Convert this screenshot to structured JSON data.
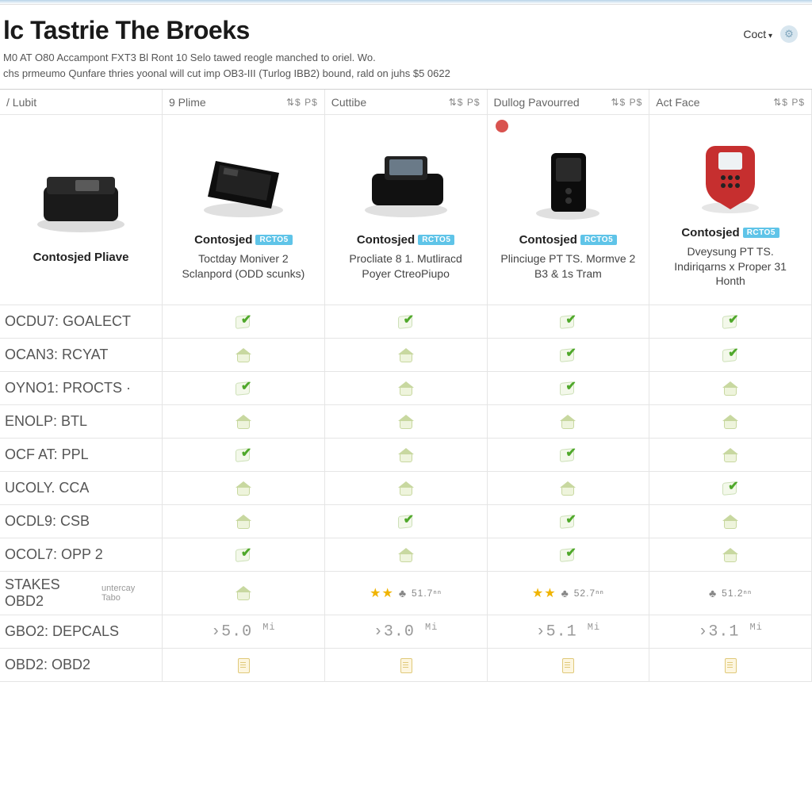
{
  "header": {
    "title": "lc Tastrie The Broeks",
    "subtitle1": "M0 AT O80 Accampont FXT3 Bl Ront 10 Selo tawed reogle manched to oriel. Wo.",
    "subtitle2": "chs prmeumo Qunfare thries yoonal will cut imp OB3-III (Turlog IBB2) bound, rald on juhs $5 0622",
    "cost_label": "Coct",
    "gear_icon": "⚙"
  },
  "columns": [
    {
      "label": "/ Lubit",
      "sort": ""
    },
    {
      "label": "9 Plime",
      "sort": "⇅$ P$"
    },
    {
      "label": "Cuttibe",
      "sort": "⇅$ P$"
    },
    {
      "label": "Dullog Pavourred",
      "sort": "⇅$ P$"
    },
    {
      "label": "Act Face",
      "sort": "⇅$ P$"
    }
  ],
  "products": [
    {
      "title_bold": "Contosjed Pliave",
      "badge": "",
      "desc": "",
      "device_type": "flat-black",
      "alert": false
    },
    {
      "title_bold": "Contosjed",
      "badge": "RCTO5",
      "desc": "Toctday Moniver 2 Sclanpord (ODD scunks)",
      "device_type": "angled-black",
      "alert": false
    },
    {
      "title_bold": "Contosjed",
      "badge": "RCTO5",
      "desc": "Procliate 8 1. Mutliracd Poyer CtreoPiupo",
      "device_type": "screen-black",
      "alert": false
    },
    {
      "title_bold": "Contosjed",
      "badge": "RCTO5",
      "desc": "Plinciuge PT TS. Mormve 2 B3 & 1s Tram",
      "device_type": "upright-black",
      "alert": true
    },
    {
      "title_bold": "Contosjed",
      "badge": "RCTO5",
      "desc": "Dveysung PT TS. Indiriqarns x Proper 31 Honth",
      "device_type": "handheld-red",
      "alert": false
    }
  ],
  "feature_rows": [
    {
      "label": "OCDU7: GOALECT",
      "sub": "",
      "cells": [
        "check",
        "check",
        "check",
        "check"
      ]
    },
    {
      "label": "OCAN3: RCYAT",
      "sub": "",
      "cells": [
        "house",
        "house",
        "check",
        "check"
      ]
    },
    {
      "label": "OYNO1: PROCTS ·",
      "sub": "",
      "cells": [
        "check",
        "house",
        "check",
        "house"
      ]
    },
    {
      "label": "ENOLP: BTL",
      "sub": "",
      "cells": [
        "house",
        "house",
        "house",
        "house"
      ]
    },
    {
      "label": "OCF AT: PPL",
      "sub": "",
      "cells": [
        "check",
        "house",
        "check",
        "house"
      ]
    },
    {
      "label": "UCOLY. CCA",
      "sub": "",
      "cells": [
        "house",
        "house",
        "house",
        "check"
      ]
    },
    {
      "label": "OCDL9: CSB",
      "sub": "",
      "cells": [
        "house",
        "check",
        "check",
        "house"
      ]
    },
    {
      "label": "OCOL7: OPP 2",
      "sub": "",
      "cells": [
        "check",
        "house",
        "check",
        "house"
      ]
    }
  ],
  "rating_row": {
    "label": "STAKES OBD2",
    "sub": "untercay Tabo",
    "cells": [
      {
        "type": "house"
      },
      {
        "type": "stars",
        "stars": "★★",
        "bell": "♣",
        "rev": "51.7ⁿⁿ"
      },
      {
        "type": "stars",
        "stars": "★★",
        "bell": "♣",
        "rev": "52.7ⁿⁿ"
      },
      {
        "type": "stars-nobell",
        "stars": "",
        "bell": "♣",
        "rev": "51.2ⁿⁿ"
      }
    ]
  },
  "stat_rows": [
    {
      "label": "GBO2: DEPCALS",
      "cells": [
        "›5.0 Mi",
        "›3.0 Mi",
        "›5.1 Mi",
        "›3.1 Mi"
      ]
    }
  ],
  "last_row": {
    "label": "OBD2: OBD2",
    "cells": [
      "doc",
      "doc",
      "doc",
      "doc"
    ]
  },
  "styling": {
    "page_bg": "#ffffff",
    "border_color": "#e5e5e5",
    "header_text": "#1a1a1a",
    "body_text": "#333333",
    "muted_text": "#888888",
    "check_green": "#4fa82b",
    "house_olive": "#c8d8a0",
    "star_yellow": "#f0b400",
    "badge_blue": "#5fc4e8",
    "alert_red": "#d9534f"
  },
  "devices_svg": {
    "flat-black": "<svg class='device' viewBox='0 0 130 100'><ellipse cx='65' cy='78' rx='55' ry='10' fill='#dcdcdc'/><rect x='18' y='30' width='94' height='44' rx='8' fill='#1a1a1a'/><rect x='22' y='18' width='86' height='22' rx='4' fill='#2a2a2a'/><rect x='58' y='22' width='30' height='14' rx='2' fill='#5a5a5a'/></svg>",
    "angled-black": "<svg class='device' viewBox='0 0 130 100'><ellipse cx='65' cy='82' rx='50' ry='9' fill='#e0e0e0'/><polygon points='30,20 110,35 100,80 20,65' fill='#0e0e0e'/><polygon points='35,25 100,38 94,70 30,58' fill='#222'/><rect x='40' y='30' width='18' height='8' fill='#444' transform='rotate(10 49 34)'/></svg>",
    "screen-black": "<svg class='device' viewBox='0 0 130 100'><ellipse cx='65' cy='82' rx='52' ry='9' fill='#e0e0e0'/><rect x='22' y='36' width='90' height='40' rx='8' fill='#111'/><rect x='38' y='14' width='54' height='30' rx='4' fill='#222'/><rect x='44' y='18' width='42' height='20' rx='2' fill='#6a7a88'/></svg>",
    "upright-black": "<svg class='device' viewBox='0 0 130 100'><ellipse cx='65' cy='86' rx='40' ry='8' fill='#e0e0e0'/><rect x='44' y='10' width='44' height='74' rx='6' fill='#0c0c0c'/><rect x='50' y='16' width='32' height='30' rx='3' fill='#2a2a2a'/><circle cx='66' cy='58' r='4' fill='#333'/><circle cx='66' cy='70' r='4' fill='#333'/></svg>",
    "handheld-red": "<svg class='device' viewBox='0 0 130 100'><ellipse cx='65' cy='88' rx='36' ry='7' fill='#e6e6e6'/><path d='M46 10 h38 a12 12 0 0 1 12 12 v36 a26 26 0 0 1 -18 24 l-13 8 l-13 -8 a26 26 0 0 1 -18 -24 v-36 a12 12 0 0 1 12 -12 z' fill='#c62f2f'/><rect x='50' y='18' width='30' height='22' rx='3' fill='#eef2f4'/><circle cx='56' cy='50' r='3' fill='#222'/><circle cx='65' cy='50' r='3' fill='#222'/><circle cx='74' cy='50' r='3' fill='#222'/><circle cx='56' cy='60' r='3' fill='#222'/><circle cx='65' cy='60' r='3' fill='#222'/><circle cx='74' cy='60' r='3' fill='#222'/></svg>"
  }
}
